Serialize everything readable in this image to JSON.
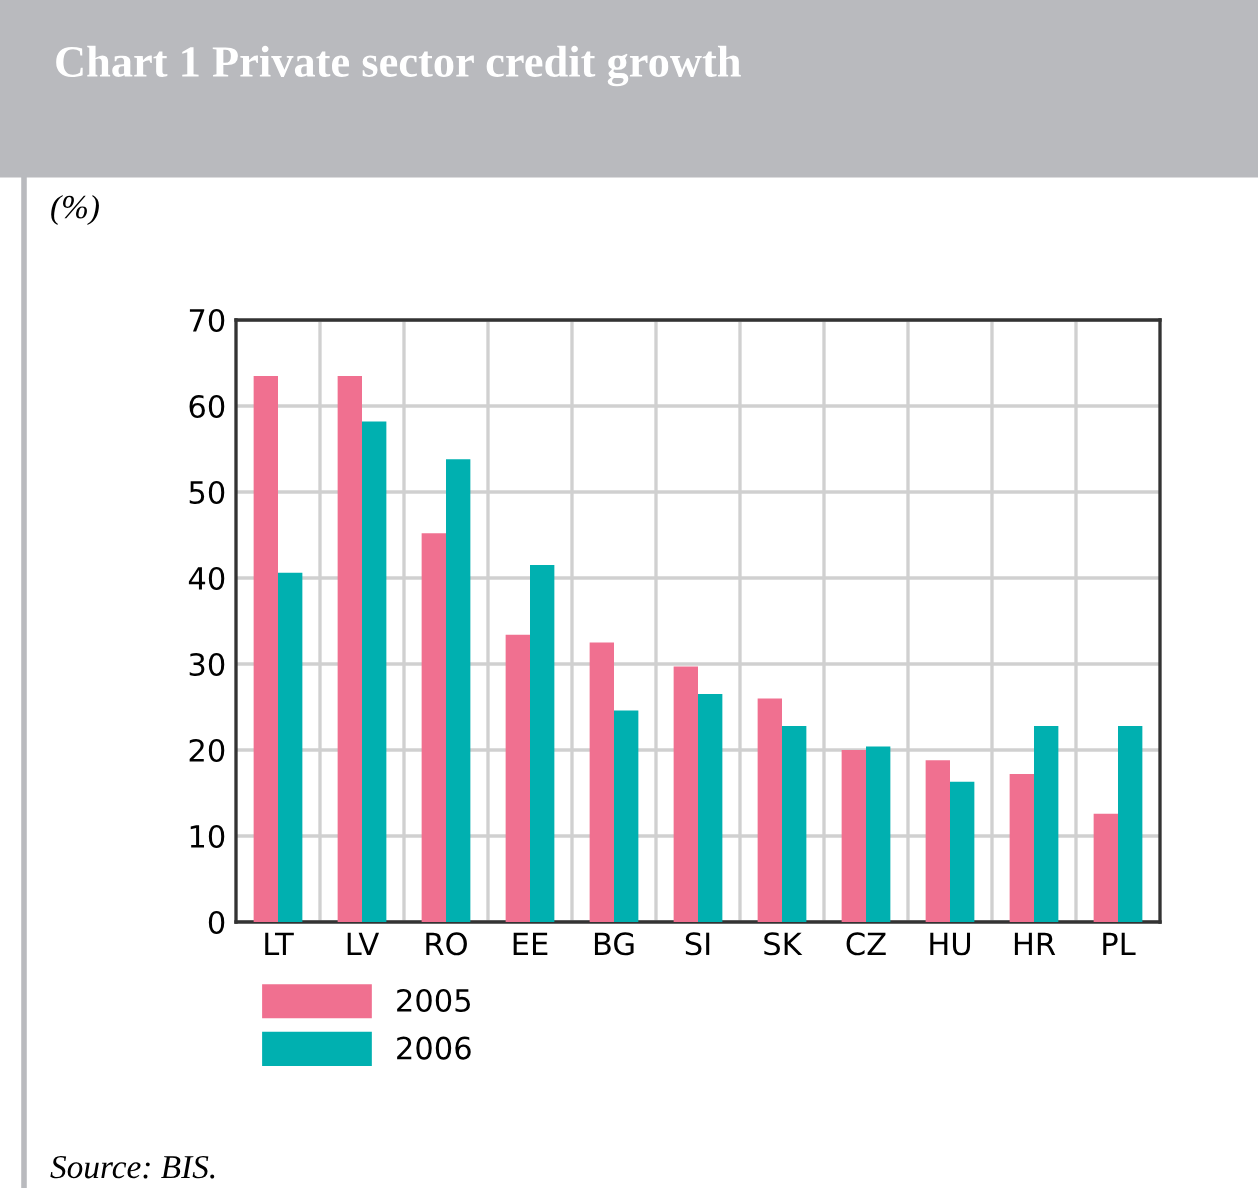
{
  "chart_data": {
    "type": "bar",
    "title": "Chart 1 Private sector credit growth",
    "ylabel": "(%)",
    "categories": [
      "LT",
      "LV",
      "RO",
      "EE",
      "BG",
      "SI",
      "SK",
      "CZ",
      "HU",
      "HR",
      "PL"
    ],
    "series": [
      {
        "name": "2005",
        "color": "#f07090",
        "values": [
          63.5,
          63.5,
          45.2,
          33.4,
          32.5,
          29.7,
          26.0,
          20.0,
          18.8,
          17.2,
          12.6
        ]
      },
      {
        "name": "2006",
        "color": "#00b0b0",
        "values": [
          40.6,
          58.2,
          53.8,
          41.5,
          24.6,
          26.5,
          22.8,
          20.4,
          16.3,
          22.8,
          22.8
        ]
      }
    ],
    "ylim": [
      0,
      70
    ],
    "yticks": [
      0,
      10,
      20,
      30,
      40,
      50,
      60,
      70
    ],
    "grid": true,
    "legend": "bottom left",
    "annotations": [
      "Source: BIS."
    ]
  }
}
